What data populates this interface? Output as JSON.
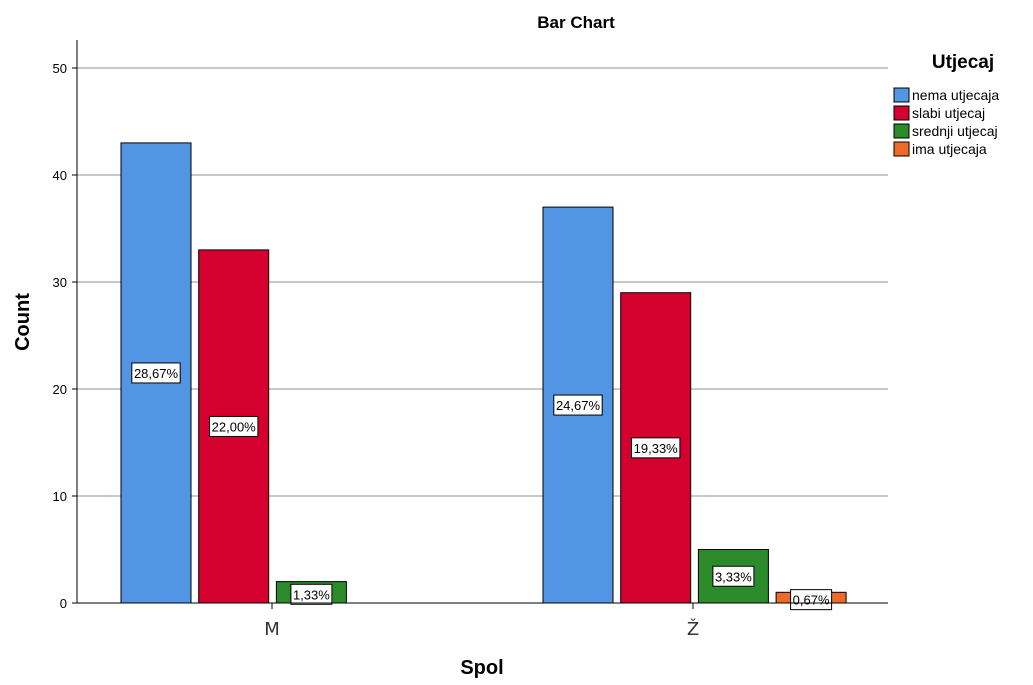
{
  "chart_data": {
    "type": "bar",
    "title": "Bar Chart",
    "xlabel": "Spol",
    "ylabel": "Count",
    "categories": [
      "M",
      "Ž"
    ],
    "ylim": [
      0,
      52.5
    ],
    "yticks": [
      0,
      10,
      20,
      30,
      40,
      50
    ],
    "grid": true,
    "legend_title": "Utjecaj",
    "legend_position": "right",
    "series": [
      {
        "name": "nema utjecaja",
        "color": "#5295e4",
        "values": [
          43,
          37
        ],
        "labels": [
          "28,67%",
          "24,67%"
        ]
      },
      {
        "name": "slabi utjecaj",
        "color": "#d4002e",
        "values": [
          33,
          29
        ],
        "labels": [
          "22,00%",
          "19,33%"
        ]
      },
      {
        "name": "srednji utjecaj",
        "color": "#2b8b2b",
        "values": [
          2,
          5
        ],
        "labels": [
          "1,33%",
          "3,33%"
        ]
      },
      {
        "name": "ima utjecaja",
        "color": "#ef6a29",
        "values": [
          0,
          1
        ],
        "labels": [
          "",
          "0,67%"
        ]
      }
    ]
  }
}
